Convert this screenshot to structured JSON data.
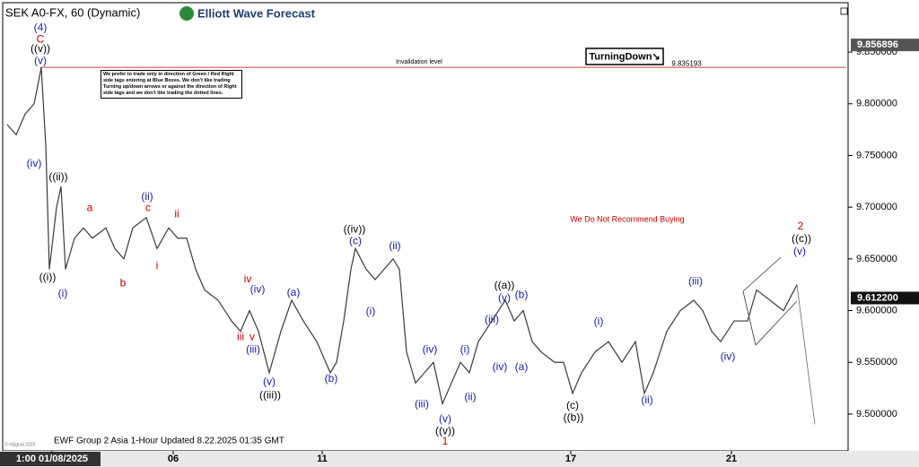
{
  "chart_data": {
    "type": "line",
    "title": "SEK A0-FX, 60 (Dynamic)",
    "logo": "Elliott Wave Forecast",
    "footer": "EWF Group 2 Asia 1-Hour Updated 8.22.2025 01:35 GMT",
    "copyright": "© eSignal 2025",
    "note": "We prefer to trade only in direction of Green / Red Right side tags entering at Blue Boxes. We don't like trading Turning up/down arrows or against the direction of Right side tags and we don't like trading the dotted lines.",
    "signal": "TurningDown↘",
    "warning": "We Do Not Recommend Buying",
    "invalidation": {
      "label": "Invalidation level",
      "value": 9.835193,
      "value_label": "9.835193"
    },
    "price_labels": [
      {
        "value": 9.856896,
        "label": "9.856896"
      },
      {
        "value": 9.6122,
        "label": "9.612200"
      }
    ],
    "color": "#3a3a3a",
    "xlim": [
      0,
      940
    ],
    "ylim": [
      9.467,
      9.896
    ],
    "xticks": [
      {
        "value": 55,
        "label": "1:00 01/08/2025"
      },
      {
        "value": 190,
        "label": "06"
      },
      {
        "value": 356,
        "label": "11"
      },
      {
        "value": 633,
        "label": "17"
      },
      {
        "value": 812,
        "label": "21"
      }
    ],
    "yticks": [
      {
        "value": 9.5,
        "label": "9.500000"
      },
      {
        "value": 9.55,
        "label": "9.550000"
      },
      {
        "value": 9.6,
        "label": "9.600000"
      },
      {
        "value": 9.65,
        "label": "9.650000"
      },
      {
        "value": 9.7,
        "label": "9.700000"
      },
      {
        "value": 9.75,
        "label": "9.750000"
      },
      {
        "value": 9.8,
        "label": "9.800000"
      },
      {
        "value": 9.85,
        "label": "9.850000"
      }
    ],
    "x": [
      5,
      15,
      25,
      35,
      43,
      48,
      52,
      60,
      65,
      70,
      80,
      90,
      100,
      115,
      125,
      135,
      145,
      160,
      172,
      185,
      195,
      205,
      215,
      225,
      240,
      255,
      265,
      275,
      285,
      297,
      310,
      322,
      335,
      350,
      365,
      372,
      380,
      388,
      393,
      405,
      415,
      425,
      435,
      442,
      450,
      460,
      470,
      480,
      490,
      500,
      510,
      520,
      530,
      545,
      560,
      570,
      580,
      590,
      600,
      615,
      625,
      635,
      645,
      660,
      675,
      690,
      705,
      715,
      725,
      740,
      755,
      770,
      780,
      790,
      800,
      815,
      830,
      840,
      855,
      870,
      885
    ],
    "values": [
      9.78,
      9.77,
      9.79,
      9.8,
      9.835,
      9.76,
      9.64,
      9.7,
      9.72,
      9.64,
      9.67,
      9.68,
      9.67,
      9.68,
      9.66,
      9.65,
      9.68,
      9.69,
      9.66,
      9.68,
      9.67,
      9.67,
      9.64,
      9.62,
      9.61,
      9.59,
      9.58,
      9.6,
      9.58,
      9.54,
      9.58,
      9.61,
      9.59,
      9.57,
      9.54,
      9.55,
      9.59,
      9.64,
      9.66,
      9.64,
      9.63,
      9.64,
      9.65,
      9.64,
      9.56,
      9.53,
      9.54,
      9.55,
      9.51,
      9.53,
      9.55,
      9.54,
      9.57,
      9.59,
      9.61,
      9.59,
      9.6,
      9.57,
      9.56,
      9.55,
      9.55,
      9.52,
      9.54,
      9.56,
      9.57,
      9.55,
      9.57,
      9.52,
      9.54,
      9.58,
      9.6,
      9.61,
      9.6,
      9.58,
      9.57,
      9.59,
      9.59,
      9.62,
      9.61,
      9.6,
      9.625
    ],
    "projection": {
      "x": [
        885,
        905
      ],
      "values": [
        9.625,
        9.49
      ]
    },
    "annotations": [
      {
        "text": "(4)",
        "x": 42,
        "y": 9.873,
        "color": "#1a1aa0"
      },
      {
        "text": "C",
        "x": 42,
        "y": 9.862,
        "color": "#c00000"
      },
      {
        "text": "((v))",
        "x": 42,
        "y": 9.853,
        "color": "#000000"
      },
      {
        "text": "(v)",
        "x": 42,
        "y": 9.841,
        "color": "#1a1aa0"
      },
      {
        "text": "(iv)",
        "x": 35,
        "y": 9.742,
        "color": "#1a1aa0"
      },
      {
        "text": "((ii))",
        "x": 62,
        "y": 9.729,
        "color": "#000000"
      },
      {
        "text": "((i))",
        "x": 50,
        "y": 9.632,
        "color": "#000000"
      },
      {
        "text": "(i)",
        "x": 67,
        "y": 9.616,
        "color": "#1a1aa0"
      },
      {
        "text": "a",
        "x": 97,
        "y": 9.699,
        "color": "#c00000"
      },
      {
        "text": "b",
        "x": 134,
        "y": 9.626,
        "color": "#c00000"
      },
      {
        "text": "(ii)",
        "x": 161,
        "y": 9.71,
        "color": "#1a1aa0"
      },
      {
        "text": "c",
        "x": 162,
        "y": 9.699,
        "color": "#c00000"
      },
      {
        "text": "i",
        "x": 172,
        "y": 9.643,
        "color": "#c00000"
      },
      {
        "text": "ii",
        "x": 194,
        "y": 9.693,
        "color": "#c00000"
      },
      {
        "text": "iv",
        "x": 273,
        "y": 9.63,
        "color": "#c00000"
      },
      {
        "text": "(iv)",
        "x": 284,
        "y": 9.62,
        "color": "#1a1aa0"
      },
      {
        "text": "iii",
        "x": 265,
        "y": 9.574,
        "color": "#c00000"
      },
      {
        "text": "v",
        "x": 278,
        "y": 9.574,
        "color": "#c00000"
      },
      {
        "text": "(iii)",
        "x": 279,
        "y": 9.562,
        "color": "#1a1aa0"
      },
      {
        "text": "(v)",
        "x": 297,
        "y": 9.531,
        "color": "#1a1aa0"
      },
      {
        "text": "((iii))",
        "x": 298,
        "y": 9.518,
        "color": "#000000"
      },
      {
        "text": "(a)",
        "x": 324,
        "y": 9.617,
        "color": "#1a1aa0"
      },
      {
        "text": "(b)",
        "x": 366,
        "y": 9.534,
        "color": "#1a1aa0"
      },
      {
        "text": "((iv))",
        "x": 392,
        "y": 9.678,
        "color": "#000000"
      },
      {
        "text": "(c)",
        "x": 393,
        "y": 9.667,
        "color": "#1a1aa0"
      },
      {
        "text": "(ii)",
        "x": 437,
        "y": 9.662,
        "color": "#1a1aa0"
      },
      {
        "text": "(i)",
        "x": 410,
        "y": 9.599,
        "color": "#1a1aa0"
      },
      {
        "text": "(iv)",
        "x": 476,
        "y": 9.562,
        "color": "#1a1aa0"
      },
      {
        "text": "(i)",
        "x": 515,
        "y": 9.562,
        "color": "#1a1aa0"
      },
      {
        "text": "(iii)",
        "x": 467,
        "y": 9.509,
        "color": "#1a1aa0"
      },
      {
        "text": "(ii)",
        "x": 521,
        "y": 9.516,
        "color": "#1a1aa0"
      },
      {
        "text": "(v)",
        "x": 493,
        "y": 9.495,
        "color": "#1a1aa0"
      },
      {
        "text": "((v))",
        "x": 493,
        "y": 9.483,
        "color": "#000000"
      },
      {
        "text": "1",
        "x": 493,
        "y": 9.473,
        "color": "#c00000"
      },
      {
        "text": "((a))",
        "x": 559,
        "y": 9.624,
        "color": "#000000"
      },
      {
        "text": "(v)",
        "x": 559,
        "y": 9.612,
        "color": "#1a1aa0"
      },
      {
        "text": "(b)",
        "x": 578,
        "y": 9.615,
        "color": "#1a1aa0"
      },
      {
        "text": "(iii)",
        "x": 545,
        "y": 9.591,
        "color": "#1a1aa0"
      },
      {
        "text": "(iv)",
        "x": 554,
        "y": 9.545,
        "color": "#1a1aa0"
      },
      {
        "text": "(a)",
        "x": 578,
        "y": 9.545,
        "color": "#1a1aa0"
      },
      {
        "text": "(c)",
        "x": 635,
        "y": 9.508,
        "color": "#000000"
      },
      {
        "text": "((b))",
        "x": 636,
        "y": 9.496,
        "color": "#000000"
      },
      {
        "text": "(i)",
        "x": 664,
        "y": 9.589,
        "color": "#1a1aa0"
      },
      {
        "text": "(ii)",
        "x": 718,
        "y": 9.513,
        "color": "#1a1aa0"
      },
      {
        "text": "(iii)",
        "x": 772,
        "y": 9.628,
        "color": "#1a1aa0"
      },
      {
        "text": "(iv)",
        "x": 808,
        "y": 9.555,
        "color": "#1a1aa0"
      },
      {
        "text": "2",
        "x": 889,
        "y": 9.681,
        "color": "#c00000"
      },
      {
        "text": "((c))",
        "x": 890,
        "y": 9.669,
        "color": "#000000"
      },
      {
        "text": "(v)",
        "x": 888,
        "y": 9.657,
        "color": "#1a1aa0"
      }
    ]
  }
}
